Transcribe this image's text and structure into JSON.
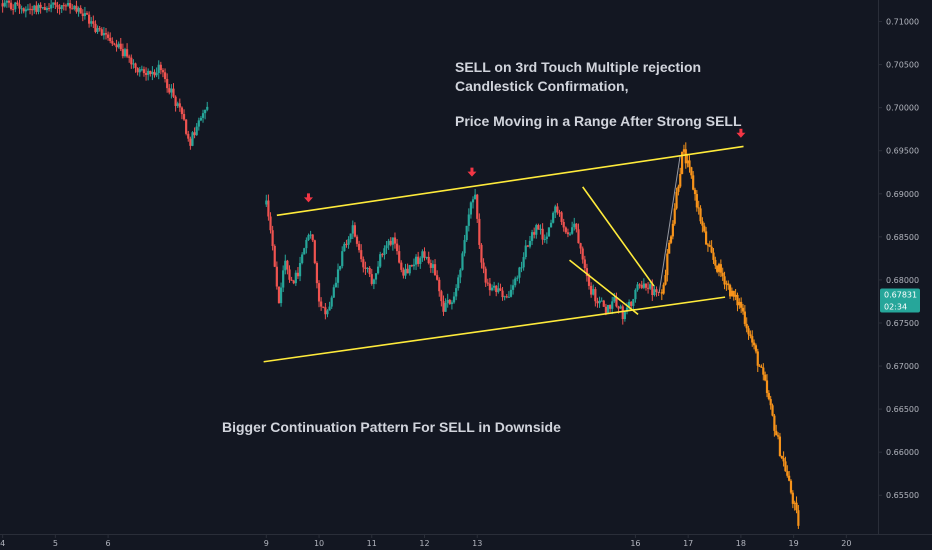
{
  "chart_data": {
    "type": "candlestick",
    "title": "",
    "xlabel": "",
    "ylabel": "",
    "ylim": [
      0.6505,
      0.7125
    ],
    "xlim": [
      3.95,
      20.6
    ],
    "grid": false,
    "y_ticks": [
      "0.71000",
      "0.70500",
      "0.70000",
      "0.69500",
      "0.69000",
      "0.68500",
      "0.68000",
      "0.67500",
      "0.67000",
      "0.66500",
      "0.66000",
      "0.65500"
    ],
    "x_ticks": [
      {
        "label": "4",
        "x": 4
      },
      {
        "label": "5",
        "x": 5
      },
      {
        "label": "6",
        "x": 6
      },
      {
        "label": "9",
        "x": 9
      },
      {
        "label": "10",
        "x": 10
      },
      {
        "label": "11",
        "x": 11
      },
      {
        "label": "12",
        "x": 12
      },
      {
        "label": "13",
        "x": 13
      },
      {
        "label": "16",
        "x": 16
      },
      {
        "label": "17",
        "x": 17
      },
      {
        "label": "18",
        "x": 18
      },
      {
        "label": "19",
        "x": 19
      },
      {
        "label": "20",
        "x": 20
      }
    ],
    "current_price": {
      "label": "0.67831",
      "countdown": "02:34",
      "value": 0.67831,
      "color": "#26a69a"
    },
    "colors": {
      "up": "#26a69a",
      "down": "#ef5350",
      "projection": "#f7931a",
      "trendline": "#ffeb3b",
      "marker": "#f23645",
      "projection_link": "#9598a1"
    },
    "price_path": [
      [
        4.0,
        0.712
      ],
      [
        4.5,
        0.7115
      ],
      [
        5.0,
        0.712
      ],
      [
        5.5,
        0.711
      ],
      [
        5.8,
        0.709
      ],
      [
        6.1,
        0.708
      ],
      [
        6.4,
        0.7055
      ],
      [
        6.7,
        0.704
      ],
      [
        6.95,
        0.7045
      ],
      [
        7.15,
        0.7025
      ],
      [
        7.4,
        0.699
      ],
      [
        7.55,
        0.696
      ],
      [
        7.75,
        0.6985
      ],
      [
        7.85,
        0.7
      ],
      [
        9.0,
        0.689
      ],
      [
        9.1,
        0.685
      ],
      [
        9.25,
        0.677
      ],
      [
        9.35,
        0.682
      ],
      [
        9.5,
        0.679
      ],
      [
        9.7,
        0.683
      ],
      [
        9.85,
        0.686
      ],
      [
        10.0,
        0.678
      ],
      [
        10.15,
        0.676
      ],
      [
        10.35,
        0.681
      ],
      [
        10.5,
        0.684
      ],
      [
        10.65,
        0.686
      ],
      [
        10.8,
        0.682
      ],
      [
        11.0,
        0.68
      ],
      [
        11.2,
        0.683
      ],
      [
        11.4,
        0.685
      ],
      [
        11.6,
        0.681
      ],
      [
        11.8,
        0.682
      ],
      [
        12.0,
        0.683
      ],
      [
        12.2,
        0.681
      ],
      [
        12.35,
        0.6765
      ],
      [
        12.55,
        0.678
      ],
      [
        12.7,
        0.682
      ],
      [
        12.85,
        0.688
      ],
      [
        12.95,
        0.69
      ],
      [
        13.05,
        0.683
      ],
      [
        13.2,
        0.679
      ],
      [
        13.4,
        0.6785
      ],
      [
        13.6,
        0.678
      ],
      [
        13.8,
        0.681
      ],
      [
        14.0,
        0.685
      ],
      [
        14.15,
        0.686
      ],
      [
        14.3,
        0.684
      ],
      [
        14.45,
        0.688
      ],
      [
        14.55,
        0.6885
      ],
      [
        14.7,
        0.685
      ],
      [
        14.85,
        0.6865
      ],
      [
        15.0,
        0.683
      ],
      [
        15.15,
        0.679
      ],
      [
        15.3,
        0.6775
      ],
      [
        15.45,
        0.6765
      ],
      [
        15.6,
        0.678
      ],
      [
        15.75,
        0.676
      ],
      [
        15.9,
        0.677
      ],
      [
        16.05,
        0.679
      ],
      [
        16.2,
        0.6795
      ],
      [
        16.35,
        0.6785
      ],
      [
        16.45,
        0.6783
      ]
    ],
    "projection_path": [
      [
        16.5,
        0.6783
      ],
      [
        16.9,
        0.695
      ],
      [
        17.05,
        0.692
      ],
      [
        17.2,
        0.688
      ],
      [
        17.35,
        0.684
      ],
      [
        17.5,
        0.682
      ],
      [
        17.7,
        0.68
      ],
      [
        17.85,
        0.678
      ],
      [
        18.0,
        0.677
      ],
      [
        18.15,
        0.674
      ],
      [
        18.3,
        0.671
      ],
      [
        18.45,
        0.668
      ],
      [
        18.6,
        0.664
      ],
      [
        18.75,
        0.66
      ],
      [
        18.85,
        0.658
      ],
      [
        19.0,
        0.654
      ],
      [
        19.1,
        0.6515
      ]
    ],
    "projection_link": [
      [
        16.45,
        0.6785
      ],
      [
        16.85,
        0.6945
      ]
    ],
    "trendlines": [
      {
        "name": "channel-top",
        "points": [
          [
            9.2,
            0.6875
          ],
          [
            18.05,
            0.6955
          ]
        ]
      },
      {
        "name": "channel-bottom",
        "points": [
          [
            8.95,
            0.6705
          ],
          [
            17.7,
            0.678
          ]
        ]
      },
      {
        "name": "wedge-top",
        "points": [
          [
            15.0,
            0.6908
          ],
          [
            16.35,
            0.6793
          ]
        ]
      },
      {
        "name": "wedge-bottom",
        "points": [
          [
            14.75,
            0.6823
          ],
          [
            16.05,
            0.676
          ]
        ]
      }
    ],
    "markers": [
      {
        "x": 9.8,
        "y": 0.689
      },
      {
        "x": 12.9,
        "y": 0.692
      },
      {
        "x": 18.0,
        "y": 0.6965
      }
    ]
  },
  "annotations": [
    {
      "id": "sell-touch-line1",
      "text": "SELL on 3rd Touch Multiple rejection"
    },
    {
      "id": "sell-touch-line2",
      "text": "Candlestick Confirmation,"
    },
    {
      "id": "range-note",
      "text": "Price Moving in a Range After Strong SELL"
    },
    {
      "id": "continuation-note",
      "text": "Bigger Continuation Pattern For SELL in Downside"
    }
  ]
}
